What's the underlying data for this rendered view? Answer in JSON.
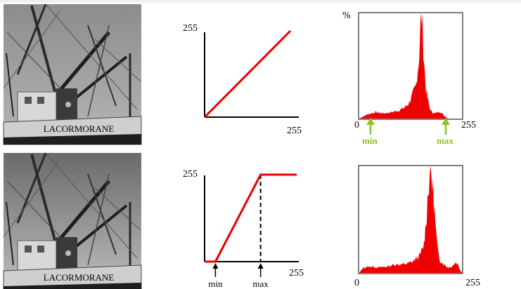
{
  "colors": {
    "curve": "#e60000",
    "histogram": "#ee0000",
    "arrow_green": "#8dc31f",
    "axis": "#000000"
  },
  "top_row": {
    "image": {
      "caption_text": "LACORMORANE"
    },
    "transfer": {
      "y_max_label": "255",
      "x_max_label": "255"
    },
    "histogram": {
      "y_label": "%",
      "x_min_label": "0",
      "x_max_label": "255",
      "min_marker": "min",
      "max_marker": "max"
    }
  },
  "bottom_row": {
    "image": {
      "caption_text": "LACORMORANE"
    },
    "transfer": {
      "y_max_label": "255",
      "x_max_label": "255",
      "min_label": "min",
      "max_label": "max"
    },
    "histogram": {
      "x_min_label": "0",
      "x_max_label": "255"
    }
  },
  "chart_data": [
    {
      "type": "line",
      "title": "",
      "x": [
        0,
        255
      ],
      "y": [
        0,
        255
      ],
      "xlim": [
        0,
        255
      ],
      "ylim": [
        0,
        255
      ]
    },
    {
      "type": "line",
      "title": "",
      "x": [
        0,
        30,
        155,
        255
      ],
      "y": [
        0,
        0,
        255,
        255
      ],
      "xlim": [
        0,
        255
      ],
      "ylim": [
        0,
        255
      ]
    },
    {
      "type": "area",
      "title": "",
      "x_range": [
        0,
        255
      ],
      "x": [
        0,
        20,
        40,
        60,
        80,
        100,
        110,
        120,
        130,
        140,
        148,
        152,
        156,
        160,
        165,
        170,
        175,
        180,
        190,
        200,
        210,
        220,
        230,
        240,
        255
      ],
      "y": [
        0,
        4,
        6,
        5,
        6,
        8,
        10,
        13,
        20,
        30,
        55,
        88,
        98,
        60,
        30,
        18,
        10,
        6,
        5,
        7,
        3,
        0,
        0,
        0,
        0
      ]
    },
    {
      "type": "area",
      "title": "",
      "x_range": [
        0,
        255
      ],
      "x": [
        0,
        10,
        30,
        50,
        70,
        90,
        110,
        130,
        150,
        160,
        165,
        170,
        175,
        180,
        185,
        190,
        195,
        200,
        210,
        220,
        230,
        240,
        245,
        250,
        255
      ],
      "y": [
        0,
        5,
        6,
        5,
        6,
        8,
        8,
        10,
        16,
        25,
        45,
        70,
        98,
        90,
        70,
        40,
        20,
        12,
        8,
        5,
        6,
        10,
        8,
        3,
        0
      ]
    }
  ]
}
